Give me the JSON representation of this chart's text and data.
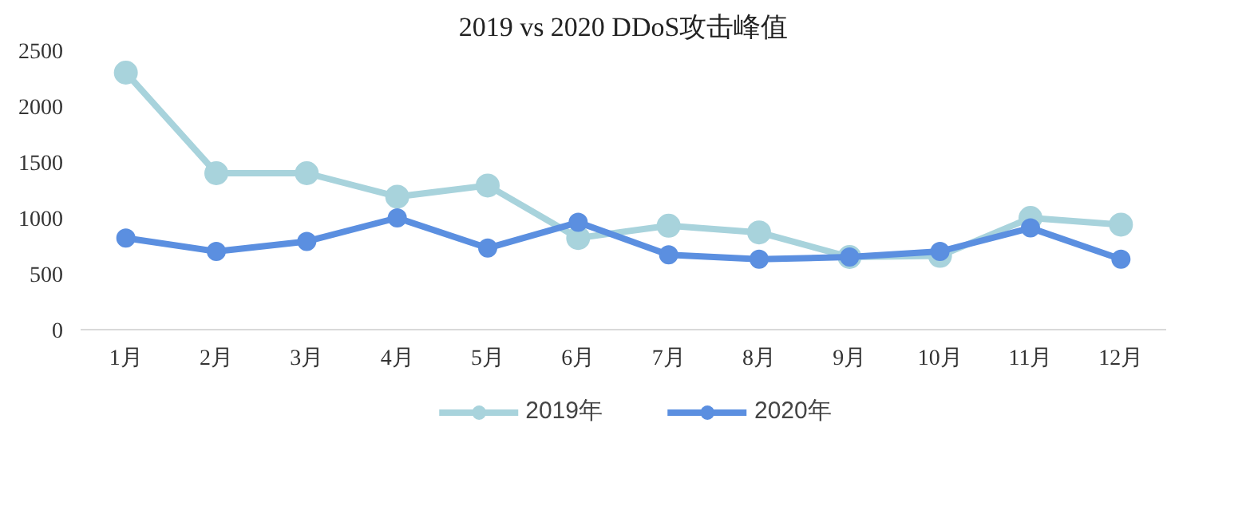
{
  "chart_data": {
    "type": "line",
    "title": "2019 vs 2020 DDoS攻击峰值",
    "categories": [
      "1月",
      "2月",
      "3月",
      "4月",
      "5月",
      "6月",
      "7月",
      "8月",
      "9月",
      "10月",
      "11月",
      "12月"
    ],
    "series": [
      {
        "name": "2019年",
        "color": "#a8d3dc",
        "values": [
          2300,
          1400,
          1400,
          1190,
          1290,
          820,
          930,
          870,
          650,
          660,
          1000,
          940
        ]
      },
      {
        "name": "2020年",
        "color": "#5b8fe0",
        "values": [
          820,
          700,
          790,
          1000,
          730,
          960,
          670,
          630,
          650,
          700,
          910,
          630
        ]
      }
    ],
    "ylim": [
      0,
      2500
    ],
    "yticks": [
      0,
      500,
      1000,
      1500,
      2000,
      2500
    ],
    "grid": false,
    "legend": "bottom",
    "marker": "circle",
    "line_style": "solid"
  }
}
